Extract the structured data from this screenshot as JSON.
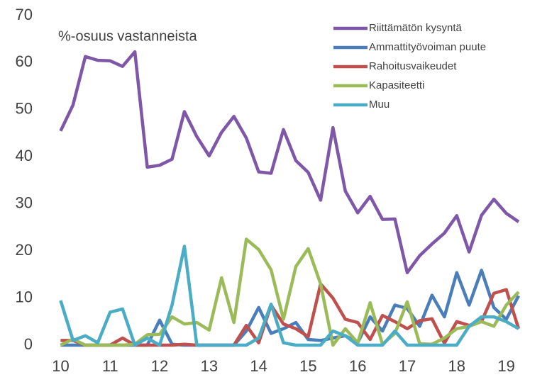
{
  "chart_data": {
    "type": "line",
    "annotation": "%-osuus vastanneista",
    "x": [
      10,
      10.25,
      10.5,
      10.75,
      11,
      11.25,
      11.5,
      11.75,
      12,
      12.25,
      12.5,
      12.75,
      13,
      13.25,
      13.5,
      13.75,
      14,
      14.25,
      14.5,
      14.75,
      15,
      15.25,
      15.5,
      15.75,
      16,
      16.25,
      16.5,
      16.75,
      17,
      17.25,
      17.5,
      17.75,
      18,
      18.25,
      18.5,
      18.75,
      19,
      19.25
    ],
    "series": [
      {
        "name": "Riittämätön kysyntä",
        "color": "#7e57a8",
        "values": [
          45.5,
          51,
          61.3,
          60.5,
          60.4,
          59.2,
          62.3,
          37.8,
          38.2,
          39.5,
          49.6,
          44.3,
          40.2,
          45.2,
          48.6,
          44,
          36.8,
          36.5,
          45.8,
          39.2,
          36.7,
          30.8,
          46.2,
          32.7,
          28.1,
          31.6,
          26.7,
          26.8,
          15.4,
          19,
          21.5,
          23.8,
          27.5,
          19.8,
          27.6,
          31,
          28,
          26.2
        ]
      },
      {
        "name": "Ammattityövoiman puute",
        "color": "#4a7ebb",
        "values": [
          0,
          0,
          0,
          0,
          0,
          0,
          0,
          0,
          5.3,
          0.2,
          0,
          0,
          0,
          0,
          0,
          3,
          8,
          2.5,
          3.5,
          4.8,
          1.2,
          1,
          1.5,
          2,
          0.5,
          6,
          3,
          8.5,
          7.8,
          4,
          10.6,
          6,
          15.4,
          8.5,
          15.9,
          8,
          5.5,
          10.5
        ]
      },
      {
        "name": "Rahoitusvaikeudet",
        "color": "#c0504d",
        "values": [
          1,
          1,
          0,
          0,
          0,
          1.5,
          0,
          0,
          0,
          0,
          0.2,
          0,
          0,
          0,
          0,
          4.2,
          0.5,
          8.5,
          4.5,
          3.5,
          1.8,
          13,
          10,
          5.5,
          4.8,
          1.2,
          6.3,
          5,
          3.5,
          5.2,
          5.6,
          0.4,
          5,
          4.2,
          5,
          11,
          11.8,
          3.5
        ]
      },
      {
        "name": "Kapasiteetti",
        "color": "#9bbb59",
        "values": [
          0,
          1.3,
          0,
          0,
          0,
          0,
          0.2,
          2.2,
          2.3,
          6,
          4.5,
          4.8,
          3.2,
          14.3,
          4.8,
          22.5,
          20.3,
          16,
          5.5,
          16.7,
          20.5,
          13,
          0,
          3.5,
          0.5,
          9,
          0.2,
          2.5,
          9.2,
          0.3,
          0.2,
          1.5,
          3.5,
          4,
          5,
          4,
          8.5,
          11.3
        ]
      },
      {
        "name": "Muu",
        "color": "#4bacc6",
        "values": [
          9.5,
          1,
          2,
          0.5,
          7,
          7.7,
          0,
          1.5,
          0,
          8.5,
          21,
          0,
          0,
          0,
          0,
          0,
          1.5,
          8.7,
          0.5,
          0,
          0,
          0,
          3,
          2,
          0,
          0,
          0,
          3,
          0,
          0,
          0,
          0,
          0,
          4,
          6,
          6,
          5,
          3.5
        ]
      }
    ],
    "xlim": [
      9.75,
      19.45
    ],
    "xticks": [
      10,
      11,
      12,
      13,
      14,
      15,
      16,
      17,
      18,
      19
    ],
    "ylim": [
      0,
      70
    ],
    "yticks": [
      0,
      10,
      20,
      30,
      40,
      50,
      60,
      70
    ],
    "grid": false,
    "legend": "top-right"
  }
}
